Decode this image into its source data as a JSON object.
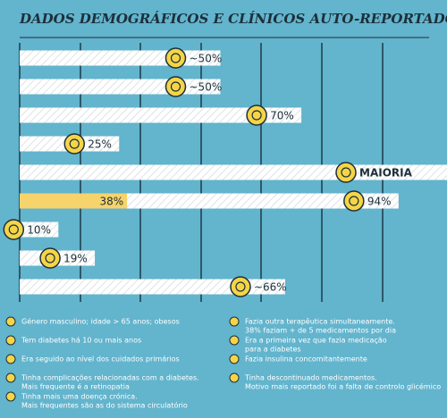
{
  "chart_data": {
    "type": "bar",
    "title": "DADOS DEMOGRÁFICOS E CLÍNICOS AUTO-REPORTADOS",
    "xlim": [
      0,
      100
    ],
    "values": [
      50,
      50,
      70,
      25,
      null,
      94,
      10,
      19,
      66
    ],
    "value_labels": [
      "~50%",
      "~50%",
      "70%",
      "25%",
      "MAIORIA",
      "94%",
      "10%",
      "19%",
      "~66%"
    ],
    "highlight_values": [
      null,
      null,
      null,
      null,
      null,
      38,
      null,
      null,
      null
    ],
    "highlight_labels": [
      null,
      null,
      null,
      null,
      null,
      "38%",
      null,
      null,
      null
    ],
    "bar_color": "#ffffff",
    "highlight_color": "#f6d36b",
    "icon_color": "#f5d547",
    "legend": [
      [
        "Género masculino; idade > 65 anos; obesos"
      ],
      [
        "Tem diabetes há 10 ou mais anos"
      ],
      [
        "Era seguido ao nível dos cuidados primários"
      ],
      [
        "Tinha complicações relacionadas com a diabetes.",
        "Mais frequente é a retinopatia"
      ],
      [
        "Tinha mais uma doença crónica.",
        "Mais frequentes são as do sistema circulatório"
      ],
      [
        "Fazia outra terapêutica simultaneamente.",
        "38% faziam + de 5 medicamentos por dia"
      ],
      [
        "Era a primeira vez que fazia medicação",
        "para a diabetes"
      ],
      [
        "Fazia insulina concomitantemente"
      ],
      [
        "Tinha descontinuado medicamentos.",
        "Motivo mais reportado foi a falta de controlo glicémico"
      ]
    ]
  }
}
